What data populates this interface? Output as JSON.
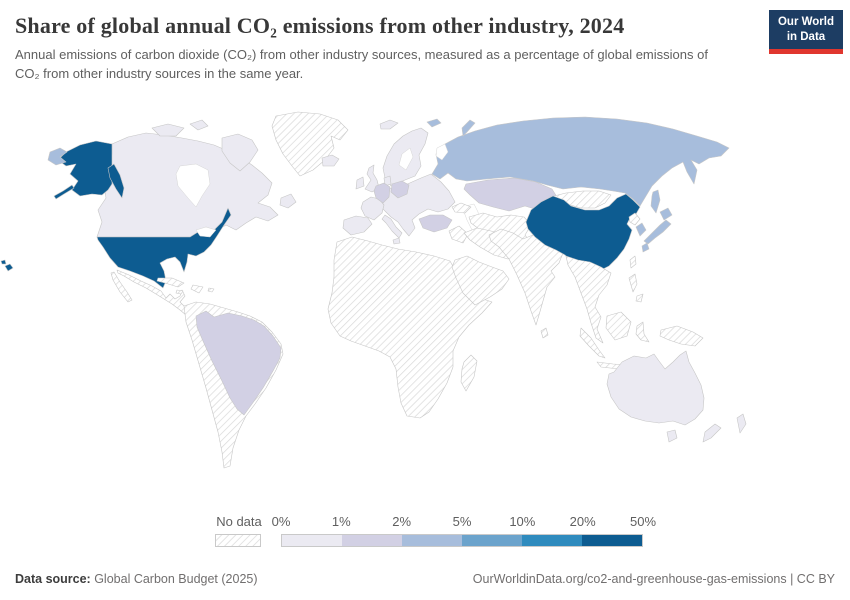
{
  "header": {
    "title": "Share of global annual CO₂ emissions from other industry, 2024",
    "subtitle": "Annual emissions of carbon dioxide (CO₂) from other industry sources, measured as a percentage of global emissions of CO₂ from other industry sources in the same year.",
    "logo": {
      "line1": "Our World",
      "line2": "in Data",
      "bg_color": "#1d3d63",
      "accent_color": "#e0362e"
    }
  },
  "legend": {
    "no_data_label": "No data",
    "tick_labels": [
      "0%",
      "1%",
      "2%",
      "5%",
      "10%",
      "20%",
      "50%"
    ],
    "bin_labels": [
      "0-1%",
      "1-2%",
      "2-5%",
      "5-10%",
      "10-20%",
      "20-50%"
    ],
    "bin_colors": [
      "#ebeaf2",
      "#d2d0e4",
      "#a7bddc",
      "#6ba3cc",
      "#2f8bbe",
      "#0d5c91"
    ]
  },
  "map": {
    "regions": [
      {
        "id": "united-states",
        "label": "United States",
        "bin": 5
      },
      {
        "id": "china",
        "label": "China",
        "bin": 5
      },
      {
        "id": "russia",
        "label": "Russia",
        "bin": 2
      },
      {
        "id": "japan",
        "label": "Japan",
        "bin": 2
      },
      {
        "id": "south-korea",
        "label": "South Korea",
        "bin": 2
      },
      {
        "id": "germany",
        "label": "Germany",
        "bin": 1
      },
      {
        "id": "poland",
        "label": "Poland",
        "bin": 1
      },
      {
        "id": "turkey",
        "label": "Turkey",
        "bin": 1
      },
      {
        "id": "kazakhstan",
        "label": "Kazakhstan",
        "bin": 1
      },
      {
        "id": "brazil",
        "label": "Brazil",
        "bin": 1
      },
      {
        "id": "canada",
        "label": "Canada",
        "bin": 0
      },
      {
        "id": "australia",
        "label": "Australia",
        "bin": 0
      },
      {
        "id": "new-zealand",
        "label": "New Zealand",
        "bin": 0
      },
      {
        "id": "united-kingdom",
        "label": "United Kingdom",
        "bin": 0
      },
      {
        "id": "ireland",
        "label": "Ireland",
        "bin": 0
      },
      {
        "id": "iceland",
        "label": "Iceland",
        "bin": 0
      },
      {
        "id": "france",
        "label": "France",
        "bin": 0
      },
      {
        "id": "spain-portugal",
        "label": "Spain & Portugal",
        "bin": 0
      },
      {
        "id": "italy",
        "label": "Italy",
        "bin": 0
      },
      {
        "id": "scandinavia",
        "label": "Scandinavia",
        "bin": 0
      },
      {
        "id": "denmark",
        "label": "Denmark",
        "bin": 0
      },
      {
        "id": "svalbard",
        "label": "Svalbard",
        "bin": 0
      },
      {
        "id": "europe-other",
        "label": "Other Europe",
        "bin": 0
      },
      {
        "id": "greenland",
        "label": "Greenland",
        "bin": -1
      },
      {
        "id": "mexico-central-america",
        "label": "Mexico & Central America",
        "bin": -1
      },
      {
        "id": "caribbean",
        "label": "Caribbean",
        "bin": -1
      },
      {
        "id": "south-america-other",
        "label": "Other South America",
        "bin": -1
      },
      {
        "id": "africa",
        "label": "Africa",
        "bin": -1
      },
      {
        "id": "middle-east",
        "label": "Middle East",
        "bin": -1
      },
      {
        "id": "caucasus",
        "label": "Caucasus",
        "bin": -1
      },
      {
        "id": "central-asia",
        "label": "Central Asia",
        "bin": -1
      },
      {
        "id": "india-south-asia",
        "label": "South Asia",
        "bin": -1
      },
      {
        "id": "southeast-asia",
        "label": "Southeast Asia",
        "bin": -1
      },
      {
        "id": "indonesia",
        "label": "Indonesia",
        "bin": -1
      },
      {
        "id": "philippines",
        "label": "Philippines",
        "bin": -1
      },
      {
        "id": "new-guinea",
        "label": "New Guinea",
        "bin": -1
      },
      {
        "id": "mongolia",
        "label": "Mongolia",
        "bin": -1
      },
      {
        "id": "north-korea",
        "label": "North Korea",
        "bin": -1
      },
      {
        "id": "taiwan",
        "label": "Taiwan",
        "bin": -1
      }
    ]
  },
  "footer": {
    "source_label": "Data source:",
    "source_text": " Global Carbon Budget (2025)",
    "link_text": "OurWorldinData.org/co2-and-greenhouse-gas-emissions | CC BY"
  },
  "chart_data": {
    "type": "heatmap",
    "subtype": "world-choropleth",
    "title": "Share of global annual CO₂ emissions from other industry, 2024",
    "unit": "% of global emissions",
    "legend_bins": [
      "0-1%",
      "1-2%",
      "2-5%",
      "5-10%",
      "10-20%",
      "20-50%",
      "No data"
    ],
    "values": [
      {
        "entity": "United States",
        "bin": "20-50%"
      },
      {
        "entity": "China",
        "bin": "20-50%"
      },
      {
        "entity": "Russia",
        "bin": "2-5%"
      },
      {
        "entity": "Japan",
        "bin": "2-5%"
      },
      {
        "entity": "South Korea",
        "bin": "2-5%"
      },
      {
        "entity": "Germany",
        "bin": "1-2%"
      },
      {
        "entity": "Poland",
        "bin": "1-2%"
      },
      {
        "entity": "Turkey",
        "bin": "1-2%"
      },
      {
        "entity": "Kazakhstan",
        "bin": "1-2%"
      },
      {
        "entity": "Brazil",
        "bin": "1-2%"
      },
      {
        "entity": "Canada",
        "bin": "0-1%"
      },
      {
        "entity": "Australia",
        "bin": "0-1%"
      },
      {
        "entity": "New Zealand",
        "bin": "0-1%"
      },
      {
        "entity": "Western & Southern Europe",
        "bin": "0-1%"
      },
      {
        "entity": "Africa",
        "bin": "No data"
      },
      {
        "entity": "Middle East",
        "bin": "No data"
      },
      {
        "entity": "India & South Asia",
        "bin": "No data"
      },
      {
        "entity": "Southeast Asia",
        "bin": "No data"
      },
      {
        "entity": "Mexico & Central America",
        "bin": "No data"
      },
      {
        "entity": "South America (except Brazil)",
        "bin": "No data"
      },
      {
        "entity": "Greenland",
        "bin": "No data"
      },
      {
        "entity": "Mongolia",
        "bin": "No data"
      }
    ]
  }
}
